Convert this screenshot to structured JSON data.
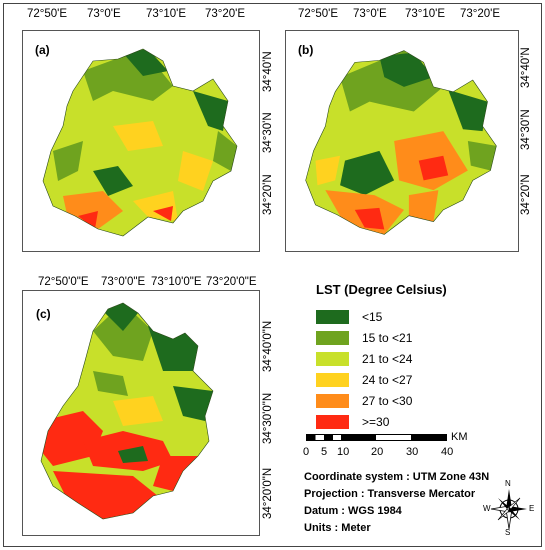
{
  "panels": {
    "a": {
      "label": "(a)",
      "top_ticks": [
        "72°50'E",
        "73°0'E",
        "73°10'E",
        "73°20'E"
      ],
      "right_ticks": [
        "34°40'N",
        "34°30'N",
        "34°20'N"
      ]
    },
    "b": {
      "label": "(b)",
      "top_ticks": [
        "72°50'E",
        "73°0'E",
        "73°10'E",
        "73°20'E"
      ],
      "right_ticks": [
        "34°40'N",
        "34°30'N",
        "34°20'N"
      ]
    },
    "c": {
      "label": "(c)",
      "top_ticks": [
        "72°50'0\"E",
        "73°0'0\"E",
        "73°10'0\"E",
        "73°20'0\"E"
      ],
      "right_ticks": [
        "34°40'0\"N",
        "34°30'0\"N",
        "34°20'0\"N"
      ]
    }
  },
  "legend": {
    "title": "LST (Degree Celsius)",
    "classes": [
      {
        "label": "<15",
        "color": "#1e6b1e"
      },
      {
        "label": "15 to <21",
        "color": "#6fa31f"
      },
      {
        "label": "21 to <24",
        "color": "#c8e02a"
      },
      {
        "label": "24 to <27",
        "color": "#ffd21f"
      },
      {
        "label": "27 to <30",
        "color": "#ff8c1a"
      },
      {
        "label": ">=30",
        "color": "#ff2a12"
      }
    ]
  },
  "scale_bar": {
    "unit": "KM",
    "ticks": [
      "0",
      "5",
      "10",
      "20",
      "30",
      "40"
    ]
  },
  "info": {
    "coordinate_system": "Coordinate system :  UTM Zone 43N",
    "projection": "Projection  :  Transverse Mercator",
    "datum": "Datum  :  WGS 1984",
    "units": "Units  :  Meter"
  },
  "north_arrow": {
    "n": "N",
    "s": "S",
    "e": "E",
    "w": "W"
  }
}
